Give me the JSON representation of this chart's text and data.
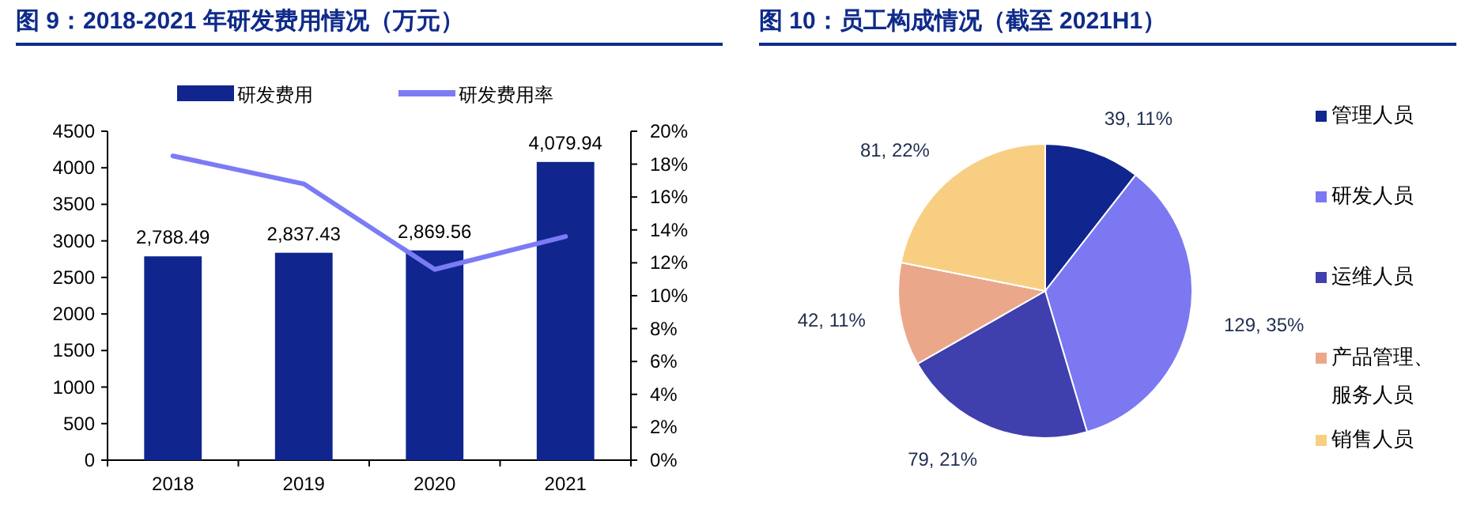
{
  "chart_data": [
    {
      "type": "bar",
      "title": "图 9：2018-2021 年研发费用情况（万元）",
      "categories": [
        "2018",
        "2019",
        "2020",
        "2021"
      ],
      "series": [
        {
          "name": "研发费用",
          "type": "bar",
          "color": "#10268e",
          "values": [
            2788.49,
            2837.43,
            2869.56,
            4079.94
          ],
          "value_labels": [
            "2,788.49",
            "2,837.43",
            "2,869.56",
            "4,079.94"
          ]
        },
        {
          "name": "研发费用率",
          "type": "line",
          "axis": "y2",
          "color": "#7b7bf5",
          "values": [
            18.5,
            16.8,
            11.6,
            13.6
          ]
        }
      ],
      "ylim": [
        0,
        4500
      ],
      "yticks": [
        0,
        500,
        1000,
        1500,
        2000,
        2500,
        3000,
        3500,
        4000,
        4500
      ],
      "y2lim": [
        0,
        20
      ],
      "y2ticks": [
        {
          "value": 0,
          "label": "0%"
        },
        {
          "value": 2,
          "label": "2%"
        },
        {
          "value": 4,
          "label": "4%"
        },
        {
          "value": 6,
          "label": "6%"
        },
        {
          "value": 8,
          "label": "8%"
        },
        {
          "value": 10,
          "label": "10%"
        },
        {
          "value": 12,
          "label": "12%"
        },
        {
          "value": 14,
          "label": "14%"
        },
        {
          "value": 16,
          "label": "16%"
        },
        {
          "value": 18,
          "label": "18%"
        },
        {
          "value": 20,
          "label": "20%"
        }
      ],
      "legend": "top"
    },
    {
      "type": "pie",
      "title": "图 10：员工构成情况（截至 2021H1）",
      "categories": [
        "管理人员",
        "研发人员",
        "运维人员",
        "产品管理、服务人员",
        "销售人员"
      ],
      "values": [
        39,
        129,
        79,
        42,
        81
      ],
      "colors": [
        "#10268e",
        "#7b78f2",
        "#3f3fae",
        "#eba789",
        "#f8cf82"
      ],
      "value_labels": [
        "39, 11%",
        "129, 35%",
        "79, 21%",
        "42, 11%",
        "81, 22%"
      ],
      "legend": "right"
    }
  ]
}
